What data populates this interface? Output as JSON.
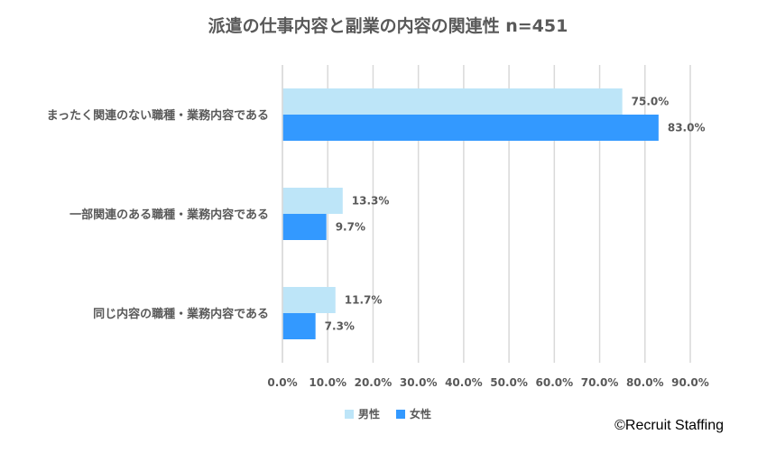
{
  "chart_data": {
    "type": "bar",
    "orientation": "horizontal",
    "title": "派遣の仕事内容と副業の内容の関連性 n=451",
    "categories": [
      "まったく関連のない職種・業務内容である",
      "一部関連のある職種・業務内容である",
      "同じ内容の職種・業務内容である"
    ],
    "series": [
      {
        "name": "男性",
        "color": "#BDE5F8",
        "values": [
          75.0,
          13.3,
          11.7
        ]
      },
      {
        "name": "女性",
        "color": "#3399FF",
        "values": [
          83.0,
          9.7,
          7.3
        ]
      }
    ],
    "value_labels": [
      [
        "75.0%",
        "13.3%",
        "11.7%"
      ],
      [
        "83.0%",
        "9.7%",
        "7.3%"
      ]
    ],
    "xlim": [
      0,
      90
    ],
    "xticks": [
      "0.0%",
      "10.0%",
      "20.0%",
      "30.0%",
      "40.0%",
      "50.0%",
      "60.0%",
      "70.0%",
      "80.0%",
      "90.0%"
    ],
    "grid": "vertical",
    "legend_position": "bottom"
  },
  "credit": "©Recruit Staffing"
}
